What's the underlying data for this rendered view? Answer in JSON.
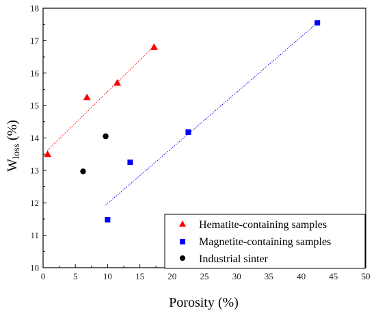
{
  "chart_data": {
    "type": "scatter",
    "title": "",
    "xlabel": "Porosity (%)",
    "ylabel": {
      "main": "W",
      "sub": "loss",
      "unit": " (%)"
    },
    "xlim": [
      0,
      50
    ],
    "ylim": [
      10,
      18
    ],
    "x_ticks": [
      0,
      5,
      10,
      15,
      20,
      25,
      30,
      35,
      40,
      45,
      50
    ],
    "y_ticks": [
      10,
      11,
      12,
      13,
      14,
      15,
      16,
      17,
      18
    ],
    "grid": false,
    "legend_position": "bottom-right",
    "series": [
      {
        "name": "Hematite-containing samples",
        "marker": "triangle",
        "color": "#ff0000",
        "points": [
          [
            0.7,
            13.5
          ],
          [
            6.8,
            15.25
          ],
          [
            11.5,
            15.7
          ],
          [
            17.2,
            16.8
          ]
        ],
        "trendline": {
          "from": [
            0.7,
            13.62
          ],
          "to": [
            17.2,
            16.83
          ],
          "style": "dotted"
        }
      },
      {
        "name": "Magnetite-containing samples",
        "marker": "square",
        "color": "#0000ff",
        "points": [
          [
            10.0,
            11.48
          ],
          [
            13.5,
            13.25
          ],
          [
            22.5,
            14.18
          ],
          [
            42.5,
            17.55
          ]
        ],
        "trendline": {
          "from": [
            9.7,
            11.93
          ],
          "to": [
            42.5,
            17.55
          ],
          "style": "dotted"
        }
      },
      {
        "name": "Industrial sinter",
        "marker": "circle",
        "color": "#000000",
        "points": [
          [
            6.2,
            12.97
          ],
          [
            9.7,
            14.05
          ]
        ]
      }
    ]
  }
}
